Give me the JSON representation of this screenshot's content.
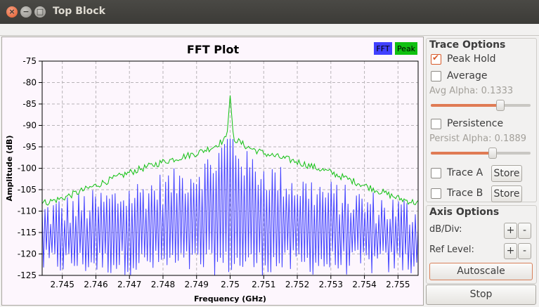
{
  "window": {
    "title": "Top Block"
  },
  "plot": {
    "title": "FFT Plot",
    "legend": [
      {
        "label": "FFT",
        "color": "#4040ff"
      },
      {
        "label": "Peak",
        "color": "#10c010"
      }
    ]
  },
  "chart_data": {
    "type": "line",
    "title": "FFT Plot",
    "xlabel": "Frequency (GHz)",
    "ylabel": "Amplitude (dB)",
    "xlim": [
      2.7444,
      2.7556
    ],
    "ylim": [
      -125,
      -75
    ],
    "xticks": [
      2.745,
      2.746,
      2.747,
      2.748,
      2.749,
      2.75,
      2.751,
      2.752,
      2.753,
      2.754,
      2.755
    ],
    "xtick_labels": [
      "2.745",
      "2.746",
      "2.747",
      "2.748",
      "2.749",
      "2.75",
      "2.751",
      "2.752",
      "2.753",
      "2.754",
      "2.755"
    ],
    "yticks": [
      -75,
      -80,
      -85,
      -90,
      -95,
      -100,
      -105,
      -110,
      -115,
      -120,
      -125
    ],
    "ytick_labels": [
      "-75",
      "-80",
      "-85",
      "-90",
      "-95",
      "-100",
      "-105",
      "-110",
      "-115",
      "-120",
      "-125"
    ],
    "grid": true,
    "legend_position": "top-right",
    "series": [
      {
        "name": "FFT",
        "color": "#4040ff",
        "x": [
          2.7445,
          2.746,
          2.747,
          2.748,
          2.749,
          2.7495,
          2.75,
          2.7505,
          2.751,
          2.752,
          2.753,
          2.754,
          2.7555
        ],
        "y": [
          -113,
          -111,
          -109,
          -107,
          -104,
          -102,
          -96,
          -102,
          -104,
          -107,
          -109,
          -111,
          -113
        ]
      },
      {
        "name": "Peak",
        "color": "#10c010",
        "x": [
          2.7445,
          2.745,
          2.746,
          2.747,
          2.748,
          2.749,
          2.7495,
          2.7499,
          2.75,
          2.7501,
          2.7505,
          2.751,
          2.752,
          2.753,
          2.754,
          2.755,
          2.7555
        ],
        "y": [
          -108,
          -107,
          -104,
          -101,
          -98.5,
          -96.5,
          -95,
          -93,
          -83,
          -93,
          -95,
          -96.5,
          -98.5,
          -101,
          -104,
          -107,
          -108
        ]
      }
    ]
  },
  "trace_options": {
    "title": "Trace Options",
    "peak_hold": "Peak Hold",
    "average": "Average",
    "avg_alpha": "Avg Alpha: 0.1333",
    "avg_alpha_value": 0.7,
    "persistence": "Persistence",
    "persist_alpha": "Persist Alpha: 0.1889",
    "persist_alpha_value": 0.62,
    "trace_a": "Trace A",
    "trace_b": "Trace B",
    "store": "Store"
  },
  "axis_options": {
    "title": "Axis Options",
    "db_div": "dB/Div:",
    "ref_level": "Ref Level:",
    "plus": "+",
    "minus": "-",
    "autoscale": "Autoscale"
  },
  "stop": "Stop"
}
